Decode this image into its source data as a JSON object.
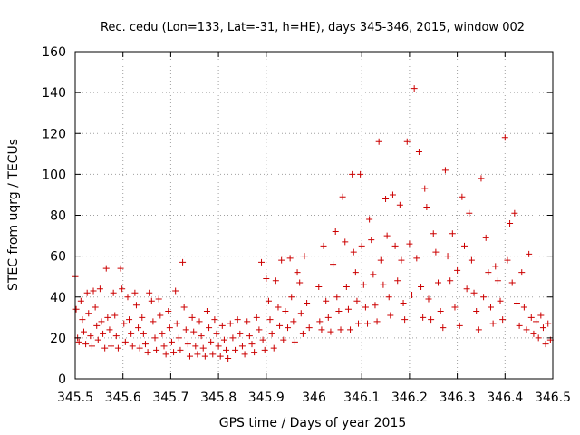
{
  "chart_data": {
    "type": "scatter",
    "title": "Rec. cedu (Lon=133, Lat=-31, h=HE), days 345-346, 2015, window 002",
    "xlabel": "GPS time / Days of year 2015",
    "ylabel": "STEC from uqrg / TECUs",
    "xlim": [
      345.5,
      346.5
    ],
    "ylim": [
      0,
      160
    ],
    "x_ticks": [
      345.5,
      345.6,
      345.7,
      345.8,
      345.9,
      346,
      346.1,
      346.2,
      346.3,
      346.4,
      346.5
    ],
    "y_ticks": [
      0,
      20,
      40,
      60,
      80,
      100,
      120,
      140,
      160
    ],
    "x_tick_labels": [
      "345.5",
      "345.6",
      "345.7",
      "345.8",
      "345.9",
      "346",
      "346.1",
      "346.2",
      "346.3",
      "346.4",
      "346.5"
    ],
    "y_tick_labels": [
      "0",
      "20",
      "40",
      "60",
      "80",
      "100",
      "120",
      "140",
      "160"
    ],
    "grid": true,
    "marker": "+",
    "color": "#cc0000",
    "series": [
      {
        "points": [
          [
            345.5,
            50
          ],
          [
            345.502,
            34
          ],
          [
            345.505,
            20
          ],
          [
            345.508,
            18
          ],
          [
            345.512,
            38
          ],
          [
            345.515,
            29
          ],
          [
            345.518,
            23
          ],
          [
            345.522,
            17
          ],
          [
            345.525,
            42
          ],
          [
            345.528,
            32
          ],
          [
            345.532,
            21
          ],
          [
            345.535,
            16
          ],
          [
            345.538,
            43
          ],
          [
            345.542,
            35
          ],
          [
            345.545,
            26
          ],
          [
            345.548,
            19
          ],
          [
            345.552,
            44
          ],
          [
            345.555,
            28
          ],
          [
            345.558,
            22
          ],
          [
            345.562,
            15
          ],
          [
            345.565,
            54
          ],
          [
            345.568,
            30
          ],
          [
            345.572,
            24
          ],
          [
            345.575,
            16
          ],
          [
            345.58,
            42
          ],
          [
            345.583,
            31
          ],
          [
            345.586,
            21
          ],
          [
            345.59,
            15
          ],
          [
            345.595,
            54
          ],
          [
            345.598,
            44
          ],
          [
            345.602,
            27
          ],
          [
            345.605,
            18
          ],
          [
            345.61,
            40
          ],
          [
            345.613,
            29
          ],
          [
            345.617,
            22
          ],
          [
            345.62,
            16
          ],
          [
            345.625,
            42
          ],
          [
            345.628,
            36
          ],
          [
            345.632,
            25
          ],
          [
            345.635,
            15
          ],
          [
            345.64,
            30
          ],
          [
            345.643,
            22
          ],
          [
            345.647,
            17
          ],
          [
            345.652,
            13
          ],
          [
            345.655,
            42
          ],
          [
            345.66,
            38
          ],
          [
            345.663,
            28
          ],
          [
            345.667,
            20
          ],
          [
            345.67,
            14
          ],
          [
            345.675,
            39
          ],
          [
            345.678,
            31
          ],
          [
            345.682,
            22
          ],
          [
            345.686,
            16
          ],
          [
            345.69,
            12
          ],
          [
            345.695,
            33
          ],
          [
            345.698,
            25
          ],
          [
            345.702,
            18
          ],
          [
            345.706,
            13
          ],
          [
            345.71,
            43
          ],
          [
            345.713,
            27
          ],
          [
            345.717,
            20
          ],
          [
            345.72,
            14
          ],
          [
            345.725,
            57
          ],
          [
            345.728,
            35
          ],
          [
            345.732,
            24
          ],
          [
            345.736,
            17
          ],
          [
            345.74,
            11
          ],
          [
            345.745,
            30
          ],
          [
            345.748,
            23
          ],
          [
            345.752,
            16
          ],
          [
            345.756,
            12
          ],
          [
            345.76,
            28
          ],
          [
            345.764,
            21
          ],
          [
            345.768,
            15
          ],
          [
            345.772,
            11
          ],
          [
            345.776,
            33
          ],
          [
            345.78,
            25
          ],
          [
            345.784,
            18
          ],
          [
            345.788,
            12
          ],
          [
            345.792,
            29
          ],
          [
            345.796,
            22
          ],
          [
            345.8,
            16
          ],
          [
            345.804,
            11
          ],
          [
            345.808,
            26
          ],
          [
            345.812,
            19
          ],
          [
            345.816,
            14
          ],
          [
            345.82,
            10
          ],
          [
            345.825,
            27
          ],
          [
            345.83,
            20
          ],
          [
            345.835,
            14
          ],
          [
            345.84,
            29
          ],
          [
            345.845,
            22
          ],
          [
            345.85,
            16
          ],
          [
            345.855,
            12
          ],
          [
            345.86,
            28
          ],
          [
            345.865,
            21
          ],
          [
            345.87,
            17
          ],
          [
            345.875,
            13
          ],
          [
            345.88,
            30
          ],
          [
            345.885,
            24
          ],
          [
            345.89,
            57
          ],
          [
            345.893,
            19
          ],
          [
            345.897,
            14
          ],
          [
            345.9,
            49
          ],
          [
            345.905,
            38
          ],
          [
            345.908,
            29
          ],
          [
            345.912,
            22
          ],
          [
            345.916,
            15
          ],
          [
            345.92,
            48
          ],
          [
            345.925,
            35
          ],
          [
            345.928,
            26
          ],
          [
            345.932,
            58
          ],
          [
            345.936,
            19
          ],
          [
            345.94,
            33
          ],
          [
            345.945,
            25
          ],
          [
            345.95,
            59
          ],
          [
            345.953,
            40
          ],
          [
            345.957,
            28
          ],
          [
            345.96,
            18
          ],
          [
            345.965,
            52
          ],
          [
            345.97,
            47
          ],
          [
            345.973,
            32
          ],
          [
            345.977,
            22
          ],
          [
            345.98,
            60
          ],
          [
            345.985,
            37
          ],
          [
            345.99,
            25
          ],
          [
            346.01,
            45
          ],
          [
            346.012,
            28
          ],
          [
            346.016,
            24
          ],
          [
            346.02,
            65
          ],
          [
            346.025,
            38
          ],
          [
            346.03,
            30
          ],
          [
            346.035,
            23
          ],
          [
            346.04,
            56
          ],
          [
            346.045,
            72
          ],
          [
            346.048,
            40
          ],
          [
            346.052,
            33
          ],
          [
            346.056,
            24
          ],
          [
            346.06,
            89
          ],
          [
            346.065,
            67
          ],
          [
            346.068,
            45
          ],
          [
            346.072,
            34
          ],
          [
            346.076,
            24
          ],
          [
            346.08,
            100
          ],
          [
            346.083,
            62
          ],
          [
            346.087,
            52
          ],
          [
            346.09,
            38
          ],
          [
            346.093,
            27
          ],
          [
            346.097,
            100
          ],
          [
            346.1,
            65
          ],
          [
            346.104,
            46
          ],
          [
            346.108,
            35
          ],
          [
            346.112,
            27
          ],
          [
            346.116,
            78
          ],
          [
            346.12,
            68
          ],
          [
            346.124,
            51
          ],
          [
            346.128,
            36
          ],
          [
            346.132,
            28
          ],
          [
            346.136,
            116
          ],
          [
            346.14,
            58
          ],
          [
            346.145,
            46
          ],
          [
            346.15,
            88
          ],
          [
            346.153,
            70
          ],
          [
            346.157,
            40
          ],
          [
            346.16,
            31
          ],
          [
            346.165,
            90
          ],
          [
            346.17,
            65
          ],
          [
            346.175,
            48
          ],
          [
            346.18,
            85
          ],
          [
            346.183,
            58
          ],
          [
            346.187,
            37
          ],
          [
            346.19,
            29
          ],
          [
            346.195,
            116
          ],
          [
            346.2,
            66
          ],
          [
            346.205,
            41
          ],
          [
            346.21,
            142
          ],
          [
            346.215,
            59
          ],
          [
            346.22,
            111
          ],
          [
            346.224,
            45
          ],
          [
            346.228,
            30
          ],
          [
            346.232,
            93
          ],
          [
            346.236,
            84
          ],
          [
            346.24,
            39
          ],
          [
            346.245,
            29
          ],
          [
            346.25,
            71
          ],
          [
            346.255,
            62
          ],
          [
            346.26,
            47
          ],
          [
            346.265,
            33
          ],
          [
            346.27,
            25
          ],
          [
            346.275,
            102
          ],
          [
            346.28,
            60
          ],
          [
            346.285,
            48
          ],
          [
            346.29,
            71
          ],
          [
            346.295,
            35
          ],
          [
            346.3,
            53
          ],
          [
            346.305,
            26
          ],
          [
            346.31,
            89
          ],
          [
            346.315,
            65
          ],
          [
            346.32,
            44
          ],
          [
            346.325,
            81
          ],
          [
            346.33,
            58
          ],
          [
            346.335,
            42
          ],
          [
            346.34,
            33
          ],
          [
            346.345,
            24
          ],
          [
            346.35,
            98
          ],
          [
            346.355,
            40
          ],
          [
            346.36,
            69
          ],
          [
            346.365,
            52
          ],
          [
            346.37,
            35
          ],
          [
            346.375,
            27
          ],
          [
            346.38,
            55
          ],
          [
            346.385,
            48
          ],
          [
            346.39,
            38
          ],
          [
            346.395,
            29
          ],
          [
            346.4,
            118
          ],
          [
            346.405,
            58
          ],
          [
            346.41,
            76
          ],
          [
            346.415,
            47
          ],
          [
            346.42,
            81
          ],
          [
            346.425,
            37
          ],
          [
            346.43,
            26
          ],
          [
            346.435,
            52
          ],
          [
            346.44,
            35
          ],
          [
            346.445,
            24
          ],
          [
            346.45,
            61
          ],
          [
            346.455,
            30
          ],
          [
            346.46,
            22
          ],
          [
            346.465,
            28
          ],
          [
            346.47,
            20
          ],
          [
            346.475,
            31
          ],
          [
            346.48,
            25
          ],
          [
            346.485,
            17
          ],
          [
            346.49,
            27
          ],
          [
            346.495,
            19
          ]
        ]
      }
    ]
  }
}
